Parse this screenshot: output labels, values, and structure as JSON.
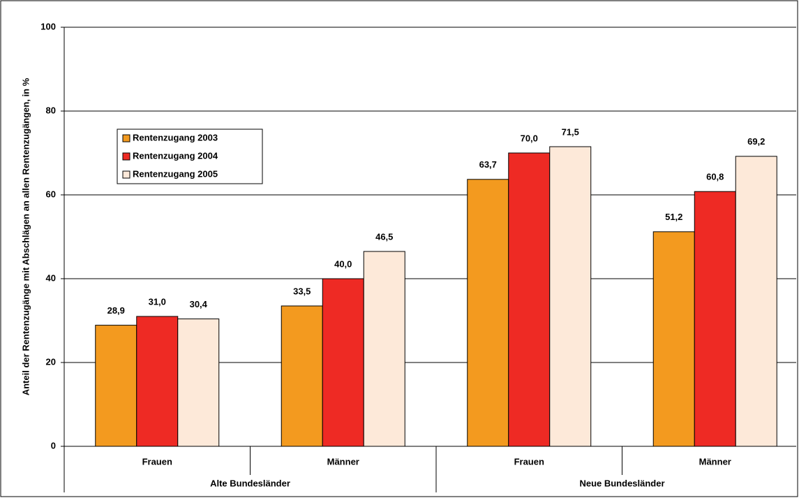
{
  "chart_data": {
    "type": "bar",
    "y_label": "Anteil der Rentenzugänge mit Abschlägen an allen Rentenzugängen, in %",
    "categories": [
      "Frauen",
      "Männer",
      "Frauen",
      "Männer"
    ],
    "groups": [
      "Alte Bundesländer",
      "Neue Bundesländer"
    ],
    "series": [
      {
        "name": "Rentenzugang 2003",
        "color": "#f39a1f",
        "values": [
          28.9,
          33.5,
          63.7,
          51.2
        ],
        "value_labels": [
          "28,9",
          "33,5",
          "63,7",
          "51,2"
        ]
      },
      {
        "name": "Rentenzugang 2004",
        "color": "#ee2a24",
        "values": [
          31.0,
          40.0,
          70.0,
          60.8
        ],
        "value_labels": [
          "31,0",
          "40,0",
          "70,0",
          "60,8"
        ]
      },
      {
        "name": "Rentenzugang 2005",
        "color": "#fde9d9",
        "values": [
          30.4,
          46.5,
          71.5,
          69.2
        ],
        "value_labels": [
          "30,4",
          "46,5",
          "71,5",
          "69,2"
        ]
      }
    ],
    "ylim": [
      0,
      100
    ],
    "yticks": [
      0,
      20,
      40,
      60,
      80,
      100
    ],
    "grid": true,
    "legend": "upper left"
  }
}
